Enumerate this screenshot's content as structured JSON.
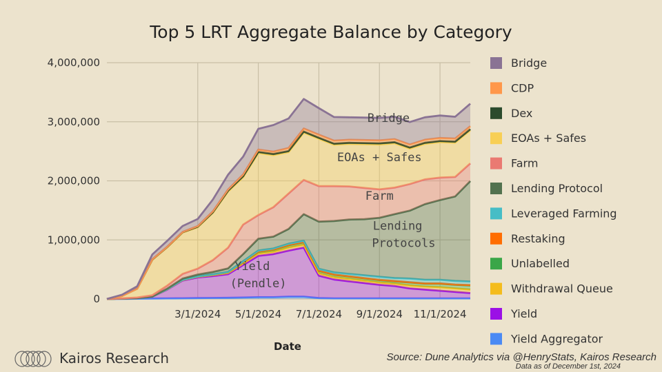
{
  "chart_data": {
    "type": "area",
    "stacked": true,
    "title": "Top 5 LRT Aggregate Balance by Category",
    "xlabel": "Date",
    "ylabel": "",
    "ylim": [
      0,
      4000000
    ],
    "y_ticks": [
      0,
      1000000,
      2000000,
      3000000,
      4000000
    ],
    "y_tick_labels": [
      "0",
      "1,000,000",
      "2,000,000",
      "3,000,000",
      "4,000,000"
    ],
    "x_ticks": [
      "3/1/2024",
      "5/1/2024",
      "7/1/2024",
      "9/1/2024",
      "11/1/2024"
    ],
    "x_tick_positions": [
      3,
      5,
      7,
      9,
      11
    ],
    "x": [
      0,
      0.5,
      1,
      1.5,
      2,
      2.5,
      3,
      3.5,
      4,
      4.5,
      5,
      5.5,
      6,
      6.5,
      7,
      7.5,
      8,
      8.5,
      9,
      9.5,
      10,
      10.5,
      11,
      11.5,
      12
    ],
    "x_unit": "months since 1/1/2024",
    "series": [
      {
        "name": "Yield Aggregator",
        "color": "#4a8af4",
        "values": [
          0,
          2000,
          5000,
          8000,
          10000,
          12000,
          15000,
          18000,
          20000,
          25000,
          30000,
          30000,
          40000,
          40000,
          15000,
          10000,
          10000,
          10000,
          10000,
          10000,
          10000,
          10000,
          10000,
          10000,
          10000
        ]
      },
      {
        "name": "Yield",
        "color": "#9b10e6",
        "values": [
          0,
          5000,
          10000,
          30000,
          150000,
          300000,
          350000,
          370000,
          400000,
          550000,
          700000,
          730000,
          780000,
          830000,
          380000,
          320000,
          290000,
          260000,
          230000,
          210000,
          170000,
          150000,
          130000,
          110000,
          90000
        ]
      },
      {
        "name": "Withdrawal Queue",
        "color": "#f4bc1c",
        "values": [
          0,
          0,
          0,
          2000,
          5000,
          8000,
          10000,
          15000,
          20000,
          30000,
          40000,
          40000,
          50000,
          50000,
          40000,
          40000,
          40000,
          40000,
          40000,
          40000,
          50000,
          50000,
          60000,
          60000,
          60000
        ]
      },
      {
        "name": "Unlabelled",
        "color": "#3aa648",
        "values": [
          0,
          0,
          0,
          1000,
          2000,
          3000,
          5000,
          8000,
          10000,
          20000,
          30000,
          35000,
          40000,
          40000,
          40000,
          40000,
          40000,
          40000,
          40000,
          40000,
          50000,
          50000,
          60000,
          60000,
          70000
        ]
      },
      {
        "name": "Restaking",
        "color": "#ff6d01",
        "values": [
          0,
          0,
          0,
          0,
          0,
          0,
          1000,
          2000,
          3000,
          4000,
          5000,
          5000,
          5000,
          5000,
          5000,
          5000,
          5000,
          5000,
          5000,
          5000,
          5000,
          5000,
          5000,
          5000,
          5000
        ]
      },
      {
        "name": "Leveraged Farming",
        "color": "#46bdc6",
        "values": [
          0,
          0,
          0,
          0,
          1000,
          2000,
          3000,
          5000,
          5000,
          10000,
          15000,
          15000,
          20000,
          20000,
          30000,
          35000,
          40000,
          45000,
          50000,
          50000,
          60000,
          60000,
          60000,
          60000,
          60000
        ]
      },
      {
        "name": "Lending Protocol",
        "color": "#52724f",
        "values": [
          0,
          0,
          0,
          2000,
          10000,
          20000,
          30000,
          40000,
          60000,
          120000,
          200000,
          200000,
          250000,
          450000,
          800000,
          870000,
          920000,
          950000,
          1000000,
          1080000,
          1150000,
          1280000,
          1350000,
          1430000,
          1700000
        ]
      },
      {
        "name": "Farm",
        "color": "#ea7a72",
        "values": [
          0,
          5000,
          10000,
          20000,
          50000,
          80000,
          100000,
          200000,
          350000,
          500000,
          400000,
          500000,
          600000,
          580000,
          600000,
          590000,
          560000,
          530000,
          480000,
          450000,
          450000,
          420000,
          380000,
          330000,
          300000
        ]
      },
      {
        "name": "EOAs + Safes",
        "color": "#f8cf55",
        "values": [
          0,
          40000,
          150000,
          600000,
          650000,
          700000,
          700000,
          800000,
          950000,
          800000,
          1050000,
          880000,
          700000,
          800000,
          800000,
          700000,
          720000,
          740000,
          760000,
          750000,
          600000,
          600000,
          600000,
          580000,
          560000
        ]
      },
      {
        "name": "Dex",
        "color": "#2b4b2d",
        "values": [
          0,
          0,
          0,
          5000,
          5000,
          5000,
          10000,
          10000,
          15000,
          20000,
          20000,
          20000,
          20000,
          20000,
          20000,
          20000,
          20000,
          20000,
          20000,
          20000,
          20000,
          20000,
          20000,
          20000,
          20000
        ]
      },
      {
        "name": "CDP",
        "color": "#ff974a",
        "values": [
          0,
          0,
          0,
          5000,
          5000,
          5000,
          10000,
          15000,
          20000,
          30000,
          40000,
          40000,
          50000,
          50000,
          50000,
          50000,
          50000,
          50000,
          50000,
          50000,
          50000,
          50000,
          50000,
          50000,
          50000
        ]
      },
      {
        "name": "Bridge",
        "color": "#8a7394",
        "values": [
          0,
          20000,
          40000,
          80000,
          100000,
          100000,
          120000,
          200000,
          250000,
          300000,
          350000,
          450000,
          500000,
          500000,
          450000,
          400000,
          380000,
          380000,
          380000,
          380000,
          380000,
          380000,
          380000,
          370000,
          380000
        ]
      }
    ],
    "legend": [
      "Bridge",
      "CDP",
      "Dex",
      "EOAs + Safes",
      "Farm",
      "Lending Protocol",
      "Leveraged Farming",
      "Restaking",
      "Unlabelled",
      "Withdrawal Queue",
      "Yield",
      "Yield Aggregator"
    ],
    "legend_position": "right",
    "annotations": [
      {
        "text": "Bridge",
        "x": 9.3,
        "y": 3000000
      },
      {
        "text": "EOAs + Safes",
        "x": 9.0,
        "y": 2330000
      },
      {
        "text": "Farm",
        "x": 9.0,
        "y": 1680000
      },
      {
        "text": "Lending",
        "x": 9.6,
        "y": 1170000
      },
      {
        "text": "Protocols",
        "x": 9.8,
        "y": 880000
      },
      {
        "text": "Yield",
        "x": 4.8,
        "y": 490000
      },
      {
        "text": "(Pendle)",
        "x": 5.0,
        "y": 200000
      }
    ]
  },
  "branding": {
    "logo_text": "Kairos Research",
    "source": "Source: Dune Analytics via @HenryStats, Kairos Research",
    "as_of": "Data as of December 1st, 2024"
  }
}
